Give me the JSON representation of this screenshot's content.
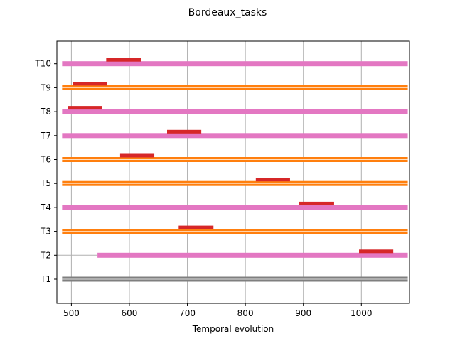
{
  "chart_data": {
    "type": "gantt",
    "title": "Bordeaux_tasks",
    "xlabel": "Temporal evolution",
    "ylabel": "",
    "xlim": [
      475,
      1083
    ],
    "x_ticks": [
      500,
      600,
      700,
      800,
      900,
      1000
    ],
    "grid": "vertical",
    "tasks": [
      {
        "label": "T1",
        "span": [
          484,
          1080
        ],
        "color": "#7f7f7f",
        "style": "double",
        "marker": null
      },
      {
        "label": "T2",
        "span": [
          545,
          1080
        ],
        "color": "#e377c2",
        "style": "single",
        "marker": [
          996,
          1055
        ]
      },
      {
        "label": "T3",
        "span": [
          484,
          1080
        ],
        "color": "#ff7f0e",
        "style": "double",
        "marker": [
          685,
          745
        ]
      },
      {
        "label": "T4",
        "span": [
          484,
          1080
        ],
        "color": "#e377c2",
        "style": "single",
        "marker": [
          893,
          953
        ]
      },
      {
        "label": "T5",
        "span": [
          484,
          1080
        ],
        "color": "#ff7f0e",
        "style": "double",
        "marker": [
          818,
          877
        ]
      },
      {
        "label": "T6",
        "span": [
          484,
          1080
        ],
        "color": "#ff7f0e",
        "style": "double",
        "marker": [
          584,
          643
        ]
      },
      {
        "label": "T7",
        "span": [
          484,
          1080
        ],
        "color": "#e377c2",
        "style": "single",
        "marker": [
          665,
          724
        ]
      },
      {
        "label": "T8",
        "span": [
          484,
          1080
        ],
        "color": "#e377c2",
        "style": "single",
        "marker": [
          494,
          553
        ]
      },
      {
        "label": "T9",
        "span": [
          484,
          1080
        ],
        "color": "#ff7f0e",
        "style": "double",
        "marker": [
          503,
          562
        ]
      },
      {
        "label": "T10",
        "span": [
          484,
          1080
        ],
        "color": "#e377c2",
        "style": "single",
        "marker": [
          560,
          620
        ]
      }
    ],
    "marker_color": "#d62728",
    "grid_color": "#b0b0b0"
  }
}
